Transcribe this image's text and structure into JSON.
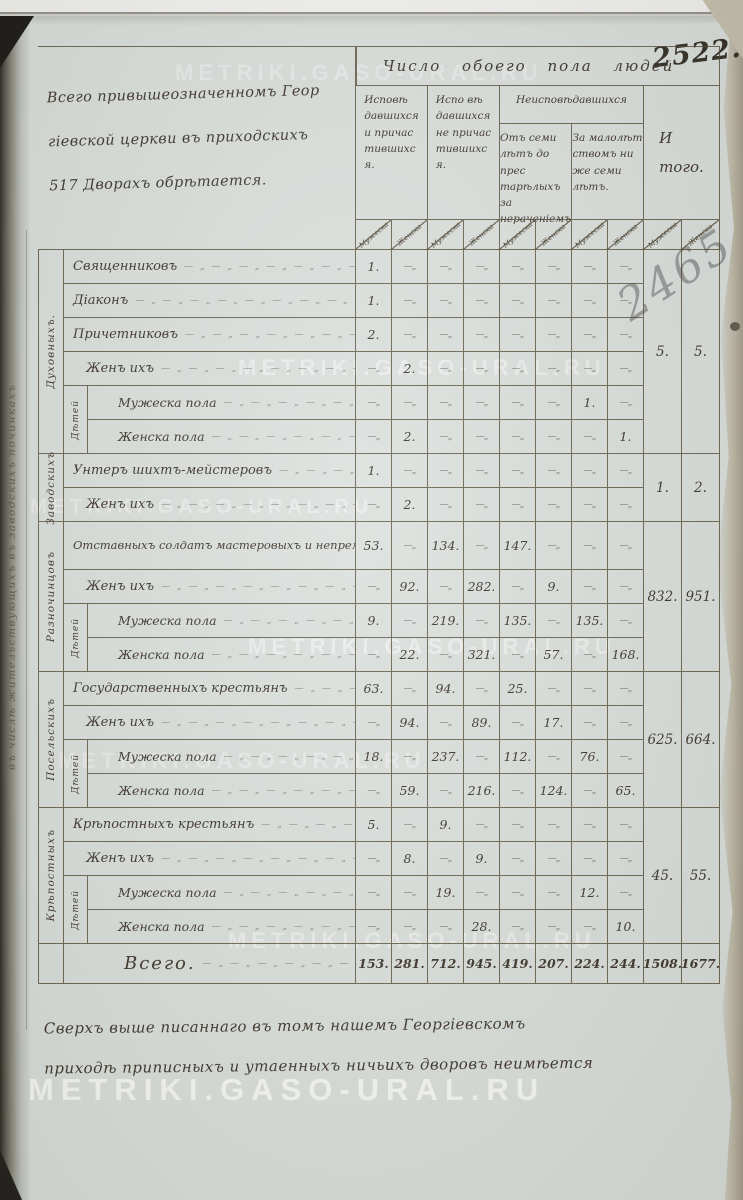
{
  "watermark": {
    "text": "METRIKI.GASO-URAL.RU"
  },
  "page": {
    "page_number": "2522.",
    "folio_number": "2465",
    "header_note": "Всего привышеозначенномъ Геор\nгіевской церкви въ приходскихъ\n517  Дворахъ обрѣтается.",
    "margin_note": "въ числѣ жительствующихъ въ заводскихъ починкахъ",
    "footer_note": "Сверхъ выше писаннаго въ томъ нашемъ Георгіевскомъ\nприходѣ приписныхъ и утаенныхъ ничьихъ дворовъ неимѣется"
  },
  "table": {
    "title": "Число обоего пола людей",
    "columns": [
      {
        "label": "Исповѣ\nдавшихся\nи причас\nтившихс\nя."
      },
      {
        "label": "Испо вѣ\nдавшихся\nне причас\nтившихс\nя."
      },
      {
        "label": "Неисповѣдавшихся",
        "sub": [
          "Отъ семи\nлѣтъ до прес\nтарѣлыхъ за\nнераченіемъ",
          "За малолѣт\nствомъ ни\nже семи\nлѣтъ."
        ]
      },
      {
        "label": "И\nтого."
      }
    ],
    "sex_labels": [
      "Мужеска",
      "Женска"
    ],
    "ditto": "—„",
    "leader": "— „ — „ — „ — „ — „ — „ — „ — „ — „ —",
    "groups": [
      {
        "label": "Духовныхъ.",
        "children_label": "Дѣтей",
        "itogo": [
          "5.",
          "5."
        ],
        "rows": [
          {
            "label": "Священниковъ",
            "cells": [
              "1.",
              "",
              "",
              "",
              "",
              "",
              "",
              ""
            ]
          },
          {
            "label": "Діаконъ",
            "cells": [
              "1.",
              "",
              "",
              "",
              "",
              "",
              "",
              ""
            ]
          },
          {
            "label": "Причетниковъ",
            "cells": [
              "2.",
              "",
              "",
              "",
              "",
              "",
              "",
              ""
            ]
          },
          {
            "label": "Женъ ихъ",
            "indent": 1,
            "cells": [
              "",
              "2.",
              "",
              "",
              "",
              "",
              "",
              ""
            ]
          },
          {
            "label": "Мужеска пола",
            "child": true,
            "cells": [
              "",
              "",
              "",
              "",
              "",
              "",
              "1.",
              ""
            ]
          },
          {
            "label": "Женска пола",
            "child": true,
            "cells": [
              "",
              "2.",
              "",
              "",
              "",
              "",
              "",
              "1."
            ]
          }
        ]
      },
      {
        "label": "Заводскихъ",
        "children_label": "",
        "itogo": [
          "1.",
          "2."
        ],
        "rows": [
          {
            "label": "Унтеръ шихтъ-мейстеровъ",
            "cells": [
              "1.",
              "",
              "",
              "",
              "",
              "",
              "",
              ""
            ]
          },
          {
            "label": "Женъ ихъ",
            "indent": 1,
            "cells": [
              "",
              "2.",
              "",
              "",
              "",
              "",
              "",
              ""
            ]
          }
        ]
      },
      {
        "label": "Разночинцовъ",
        "children_label": "Дѣтей",
        "itogo": [
          "832.",
          "951."
        ],
        "rows": [
          {
            "label": "Отставныхъ солдатъ мастеровыхъ и непремѣнныхъ работниковъ.",
            "twoline": true,
            "cells": [
              "53.",
              "",
              "134.",
              "",
              "147.",
              "",
              "",
              ""
            ]
          },
          {
            "label": "Женъ ихъ",
            "indent": 1,
            "cells": [
              "",
              "92.",
              "",
              "282.",
              "",
              "9.",
              "",
              ""
            ]
          },
          {
            "label": "Мужеска пола",
            "child": true,
            "cells": [
              "9.",
              "",
              "219.",
              "",
              "135.",
              "",
              "135.",
              ""
            ]
          },
          {
            "label": "Женска пола",
            "child": true,
            "cells": [
              "",
              "22.",
              "",
              "321.",
              "",
              "57.",
              "",
              "168."
            ]
          }
        ]
      },
      {
        "label": "Посельскихъ",
        "children_label": "Дѣтей",
        "itogo": [
          "625.",
          "664."
        ],
        "rows": [
          {
            "label": "Государственныхъ крестьянъ",
            "cells": [
              "63.",
              "",
              "94.",
              "",
              "25.",
              "",
              "",
              ""
            ]
          },
          {
            "label": "Женъ ихъ",
            "indent": 1,
            "cells": [
              "",
              "94.",
              "",
              "89.",
              "",
              "17.",
              "",
              ""
            ]
          },
          {
            "label": "Мужеска пола",
            "child": true,
            "cells": [
              "18.",
              "",
              "237.",
              "",
              "112.",
              "",
              "76.",
              ""
            ]
          },
          {
            "label": "Женска пола",
            "child": true,
            "cells": [
              "",
              "59.",
              "",
              "216.",
              "",
              "124.",
              "",
              "65."
            ]
          }
        ]
      },
      {
        "label": "Крѣпостныхъ",
        "children_label": "Дѣтей",
        "itogo": [
          "45.",
          "55."
        ],
        "rows": [
          {
            "label": "Крѣпостныхъ крестьянъ",
            "cells": [
              "5.",
              "",
              "9.",
              "",
              "",
              "",
              "",
              ""
            ]
          },
          {
            "label": "Женъ ихъ",
            "indent": 1,
            "cells": [
              "",
              "8.",
              "",
              "9.",
              "",
              "",
              "",
              ""
            ]
          },
          {
            "label": "Мужеска пола",
            "child": true,
            "cells": [
              "",
              "",
              "19.",
              "",
              "",
              "",
              "12.",
              ""
            ]
          },
          {
            "label": "Женска пола",
            "child": true,
            "cells": [
              "",
              "",
              "",
              "28.",
              "",
              "",
              "",
              "10."
            ]
          }
        ]
      }
    ],
    "total_row": {
      "label": "Всего.",
      "cells": [
        "153.",
        "281.",
        "712.",
        "945.",
        "419.",
        "207.",
        "224.",
        "244.",
        "1508.",
        "1677."
      ]
    }
  }
}
